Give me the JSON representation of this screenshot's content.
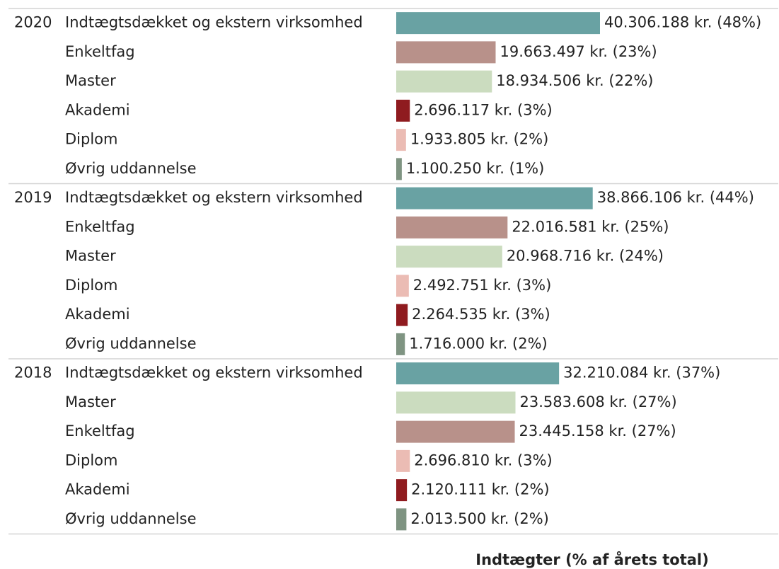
{
  "chart_data": {
    "type": "bar",
    "orientation": "horizontal",
    "x_label": "Indtægter (% af årets total)",
    "groups": [
      {
        "name": "2020",
        "categories": [
          "Indtægtsdækket og ekstern virksomhed",
          "Enkeltfag",
          "Master",
          "Akademi",
          "Diplom",
          "Øvrig uddannelse"
        ],
        "values": [
          40306188,
          19663497,
          18934506,
          2696117,
          1933805,
          1100250
        ],
        "value_labels": [
          "40.306.188 kr. (48%)",
          "19.663.497 kr. (23%)",
          "18.934.506 kr. (22%)",
          "2.696.117 kr. (3%)",
          "1.933.805 kr. (2%)",
          "1.100.250 kr. (1%)"
        ],
        "colors": [
          "#69a2a3",
          "#b8918a",
          "#cbdcbf",
          "#8f1b1f",
          "#ebbcb4",
          "#7f9482"
        ]
      },
      {
        "name": "2019",
        "categories": [
          "Indtægtsdækket og ekstern virksomhed",
          "Enkeltfag",
          "Master",
          "Diplom",
          "Akademi",
          "Øvrig uddannelse"
        ],
        "values": [
          38866106,
          22016581,
          20968716,
          2492751,
          2264535,
          1716000
        ],
        "value_labels": [
          "38.866.106 kr. (44%)",
          "22.016.581 kr. (25%)",
          "20.968.716 kr. (24%)",
          "2.492.751 kr. (3%)",
          "2.264.535 kr. (3%)",
          "1.716.000 kr. (2%)"
        ],
        "colors": [
          "#69a2a3",
          "#b8918a",
          "#cbdcbf",
          "#ebbcb4",
          "#8f1b1f",
          "#7f9482"
        ]
      },
      {
        "name": "2018",
        "categories": [
          "Indtægtsdækket og ekstern virksomhed",
          "Master",
          "Enkeltfag",
          "Diplom",
          "Akademi",
          "Øvrig uddannelse"
        ],
        "values": [
          32210084,
          23583608,
          23445158,
          2696810,
          2120111,
          2013500
        ],
        "value_labels": [
          "32.210.084 kr. (37%)",
          "23.583.608 kr. (27%)",
          "23.445.158 kr. (27%)",
          "2.696.810 kr. (3%)",
          "2.120.111 kr. (2%)",
          "2.013.500 kr. (2%)"
        ],
        "colors": [
          "#69a2a3",
          "#cbdcbf",
          "#b8918a",
          "#ebbcb4",
          "#8f1b1f",
          "#7f9482"
        ]
      }
    ]
  }
}
